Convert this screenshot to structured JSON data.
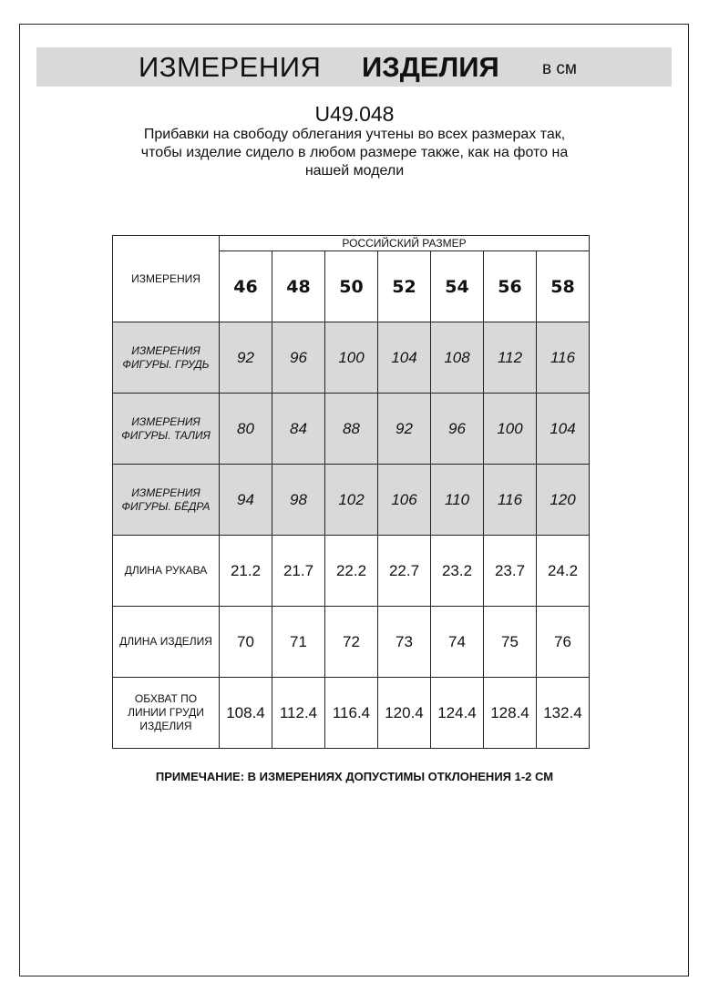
{
  "header": {
    "title_regular": "ИЗМЕРЕНИЯ",
    "title_bold": "ИЗДЕЛИЯ",
    "unit": "в см"
  },
  "article": "U49.048",
  "description": [
    "Прибавки на свободу облегания учтены во всех размерах так,",
    "чтобы изделие сидело в любом размере также, как на фото на",
    "нашей модели"
  ],
  "table": {
    "group_header": "РОССИЙСКИЙ РАЗМЕР",
    "corner_label": "ИЗМЕРЕНИЯ",
    "sizes": [
      "46",
      "48",
      "50",
      "52",
      "54",
      "56",
      "58"
    ],
    "rows": [
      {
        "label": [
          "ИЗМЕРЕНИЯ",
          "ФИГУРЫ. ГРУДЬ"
        ],
        "shaded": true,
        "values": [
          "92",
          "96",
          "100",
          "104",
          "108",
          "112",
          "116"
        ]
      },
      {
        "label": [
          "ИЗМЕРЕНИЯ",
          "ФИГУРЫ. ТАЛИЯ"
        ],
        "shaded": true,
        "values": [
          "80",
          "84",
          "88",
          "92",
          "96",
          "100",
          "104"
        ]
      },
      {
        "label": [
          "ИЗМЕРЕНИЯ",
          "ФИГУРЫ. БЁДРА"
        ],
        "shaded": true,
        "values": [
          "94",
          "98",
          "102",
          "106",
          "110",
          "116",
          "120"
        ]
      },
      {
        "label": [
          "ДЛИНА РУКАВА"
        ],
        "shaded": false,
        "values": [
          "21.2",
          "21.7",
          "22.2",
          "22.7",
          "23.2",
          "23.7",
          "24.2"
        ]
      },
      {
        "label": [
          "ДЛИНА ИЗДЕЛИЯ"
        ],
        "shaded": false,
        "values": [
          "70",
          "71",
          "72",
          "73",
          "74",
          "75",
          "76"
        ]
      },
      {
        "label": [
          "ОБХВАТ ПО",
          "ЛИНИИ ГРУДИ",
          "ИЗДЕЛИЯ"
        ],
        "shaded": false,
        "values": [
          "108.4",
          "112.4",
          "116.4",
          "120.4",
          "124.4",
          "128.4",
          "132.4"
        ]
      }
    ],
    "shade_color": "#d9d9d9"
  },
  "note": "ПРИМЕЧАНИЕ: В ИЗМЕРЕНИЯХ ДОПУСТИМЫ ОТКЛОНЕНИЯ 1-2 СМ"
}
